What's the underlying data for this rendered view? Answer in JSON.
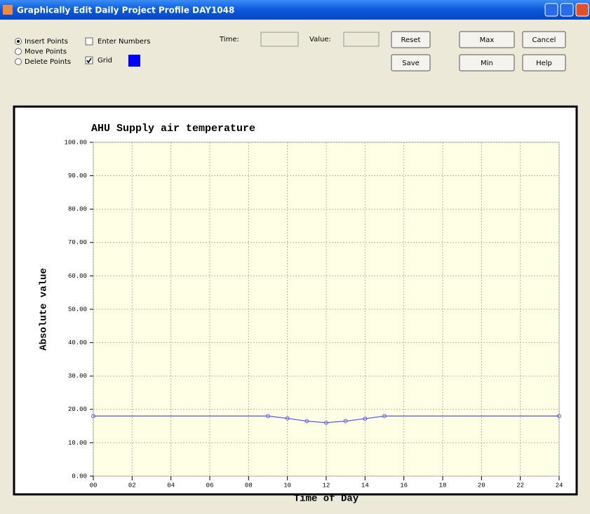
{
  "window": {
    "title": "Graphically Edit Daily Project Profile DAY1048"
  },
  "controls": {
    "radios": [
      {
        "label": "Insert Points",
        "checked": true
      },
      {
        "label": "Move Points",
        "checked": false
      },
      {
        "label": "Delete Points",
        "checked": false
      }
    ],
    "checkboxes": [
      {
        "label": "Enter Numbers",
        "checked": false
      },
      {
        "label": "Grid",
        "checked": true
      }
    ],
    "grid_swatch_color": "#0000ff",
    "time_label": "Time:",
    "value_label": "Value:",
    "buttons": [
      "Reset",
      "Max",
      "Cancel",
      "Save",
      "Min",
      "Help"
    ]
  },
  "chart_data": {
    "type": "line",
    "title": "AHU Supply air temperature",
    "xlabel": "Time of Day",
    "ylabel": "Absolute value",
    "x": [
      0,
      9,
      10,
      11,
      12,
      13,
      14,
      15,
      24
    ],
    "values": [
      18,
      18,
      17.3,
      16.5,
      16,
      16.5,
      17.2,
      18,
      18
    ],
    "color": "#6060f0",
    "xlim": [
      0,
      24
    ],
    "xticks": [
      {
        "value": 0,
        "label": "00"
      },
      {
        "value": 2,
        "label": "02"
      },
      {
        "value": 4,
        "label": "04"
      },
      {
        "value": 6,
        "label": "06"
      },
      {
        "value": 8,
        "label": "08"
      },
      10,
      12,
      14,
      16,
      18,
      20,
      22,
      24
    ],
    "ylim": [
      0,
      100
    ],
    "yticks": [
      {
        "value": 0,
        "label": "0.00"
      },
      {
        "value": 10,
        "label": "10.00"
      },
      {
        "value": 20,
        "label": "20.00"
      },
      {
        "value": 30,
        "label": "30.00"
      },
      {
        "value": 40,
        "label": "40.00"
      },
      {
        "value": 50,
        "label": "50.00"
      },
      {
        "value": 60,
        "label": "60.00"
      },
      {
        "value": 70,
        "label": "70.00"
      },
      {
        "value": 80,
        "label": "80.00"
      },
      {
        "value": 90,
        "label": "90.00"
      },
      {
        "value": 100,
        "label": "100.00"
      }
    ],
    "grid": true,
    "background": "#ffffe6"
  }
}
